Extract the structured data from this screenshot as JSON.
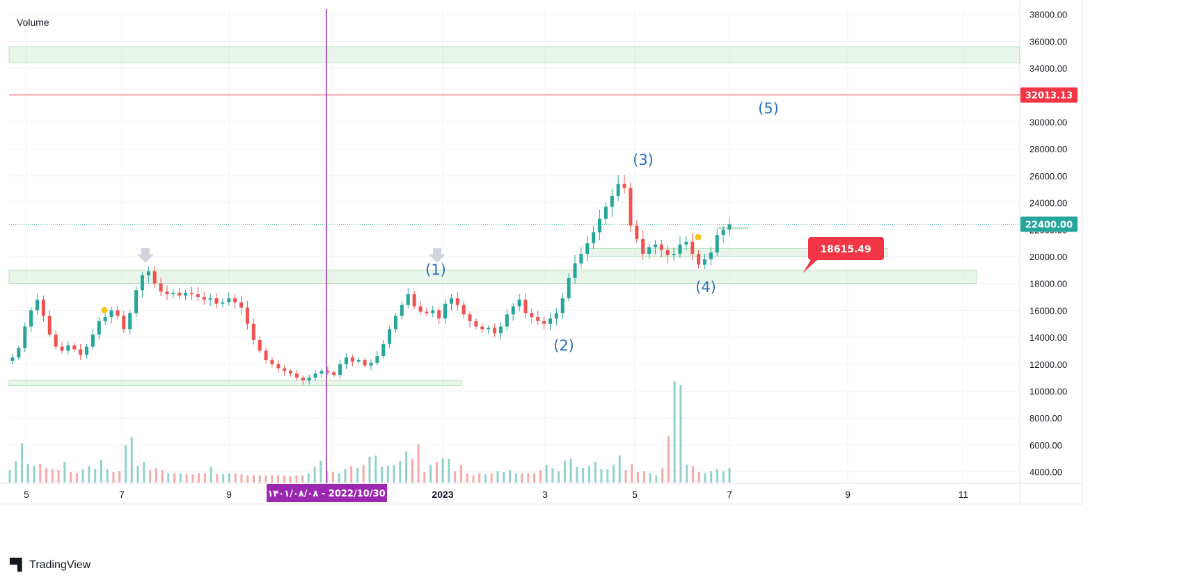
{
  "legend": {
    "volume_label": "Volume"
  },
  "branding": {
    "logo_icon": "tradingview-logo-icon",
    "name": "TradingView"
  },
  "chart_data": {
    "type": "candlestick",
    "y_axis": {
      "range": [
        3200,
        38400
      ],
      "ticks": [
        "4000.00",
        "6000.00",
        "8000.00",
        "10000.00",
        "12000.00",
        "14000.00",
        "16000.00",
        "18000.00",
        "20000.00",
        "22000.00",
        "24000.00",
        "26000.00",
        "28000.00",
        "30000.00",
        "32000.00",
        "34000.00",
        "36000.00",
        "38000.00"
      ]
    },
    "x_axis": {
      "ticks": [
        "5",
        "7",
        "9",
        "2023",
        "3",
        "5",
        "7",
        "9",
        "11"
      ]
    },
    "current_price": {
      "value": 22400,
      "label": "22400.00",
      "color": "#26a69a"
    },
    "resistance_line": {
      "value": 32013.13,
      "label": "32013.13",
      "color": "#f23645"
    },
    "crosshair": {
      "date_label": "۱۴۰۱/۰۸/۰۸ - 2022/10/30",
      "color": "#9c27b0"
    },
    "callout": {
      "label": "18615.49",
      "color": "#f23645"
    },
    "zones": [
      {
        "from": 34400,
        "to": 35600
      },
      {
        "from": 18000,
        "to": 19000
      },
      {
        "from": 20000,
        "to": 20600
      },
      {
        "from": 10400,
        "to": 10800
      }
    ],
    "wave_labels": [
      "(1)",
      "(2)",
      "(3)",
      "(4)",
      "(5)"
    ],
    "price_path": [
      [
        12500,
        13200,
        14800,
        16000,
        16800,
        15600,
        14200,
        13300,
        13000,
        13400,
        13100,
        12700,
        13300,
        14200,
        15200,
        15500,
        16000,
        15600,
        14600,
        15800,
        17500,
        18600,
        18900,
        18000,
        17400,
        17200,
        17300,
        17100,
        17300,
        17200,
        17000,
        16800,
        16900,
        16500,
        16600,
        16900,
        16600,
        16200,
        15000,
        13800,
        13000,
        12300,
        12000,
        11700,
        11500,
        11300,
        11000,
        10800,
        11000,
        11300,
        11500,
        11400,
        11200,
        12000,
        12500,
        12200,
        12300,
        11900,
        12100,
        12600,
        13500,
        14600,
        15600,
        16400,
        17200,
        16300,
        15900,
        15800,
        16000,
        15400,
        16500,
        16900,
        16400,
        15700,
        15200,
        14800,
        14600,
        14700,
        14300,
        14800,
        15700,
        16300,
        16800,
        15800,
        15500,
        15200,
        15000,
        15400,
        15800,
        16900,
        18400,
        19500,
        20200,
        21000,
        21800,
        22800,
        23700,
        24500,
        25400,
        25100,
        22300,
        21300,
        20200,
        20700,
        20900,
        20500,
        20100,
        20200,
        20900,
        21100,
        20200,
        19400,
        19800,
        20300,
        21600,
        22000,
        22400
      ]
    ],
    "volume_path": [
      1200,
      2100,
      3800,
      1800,
      1600,
      1800,
      1400,
      1300,
      1200,
      2000,
      1000,
      900,
      1300,
      1600,
      1300,
      2200,
      1300,
      1000,
      1100,
      3600,
      4400,
      1600,
      2000,
      1200,
      1400,
      1200,
      900,
      900,
      900,
      800,
      800,
      900,
      900,
      1500,
      800,
      800,
      900,
      900,
      800,
      700,
      700,
      700,
      700,
      700,
      700,
      700,
      600,
      700,
      700,
      900,
      1500,
      2100,
      1100,
      1000,
      900,
      1300,
      1600,
      1400,
      1700,
      2500,
      2600,
      1500,
      1600,
      1700,
      2100,
      3000,
      2300,
      3700,
      1000,
      1700,
      2000,
      2300,
      2300,
      1100,
      1700,
      900,
      700,
      900,
      800,
      900,
      1100,
      1000,
      1200,
      900,
      900,
      900,
      900,
      1200,
      1700,
      1400,
      1100,
      2100,
      2300,
      1500,
      1400,
      1600,
      2000,
      1300,
      1300,
      1700,
      2600,
      1200,
      1800,
      1000,
      1100,
      900,
      700,
      1400,
      4500,
      9800,
      9400,
      1700,
      1600,
      1000,
      900,
      1100,
      1300,
      1100,
      1400
    ]
  }
}
